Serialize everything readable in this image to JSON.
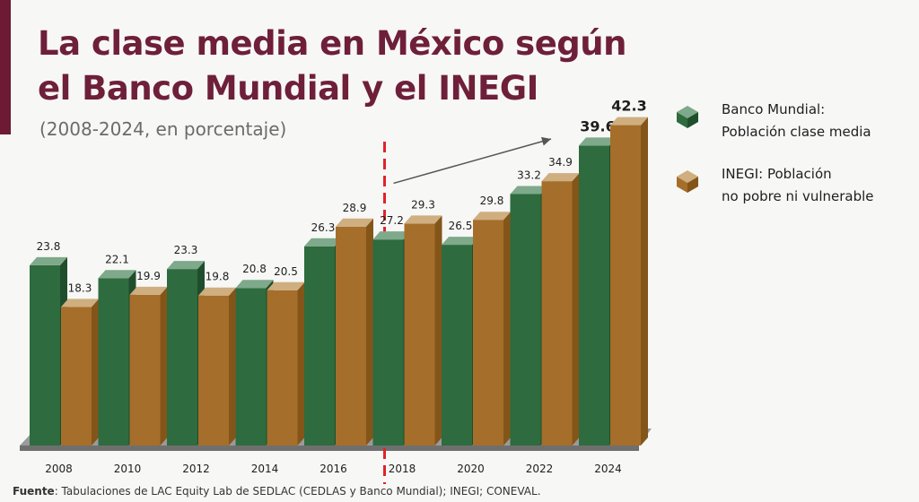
{
  "title_line1": "La clase media en México según",
  "title_line2": "el Banco Mundial y el INEGI",
  "subtitle": "(2008-2024, en porcentaje)",
  "source_label": "Fuente",
  "source_text": ": Tabulaciones de LAC Equity Lab de SEDLAC (CEDLAS y Banco Mundial); INEGI; CONEVAL.",
  "colors": {
    "banco_front": "#2e6b3e",
    "banco_side": "#1f4e2c",
    "banco_top": "#7ea98a",
    "inegi_front": "#a56e2a",
    "inegi_side": "#845519",
    "inegi_top": "#cfae7f",
    "divider": "#e0232a",
    "title": "#6e1f3a"
  },
  "chart_data": {
    "type": "bar",
    "title": "La clase media en México según el Banco Mundial y el INEGI",
    "subtitle": "(2008-2024, en porcentaje)",
    "categories": [
      "2008",
      "2010",
      "2012",
      "2014",
      "2016",
      "2018",
      "2020",
      "2022",
      "2024"
    ],
    "series": [
      {
        "name": "Banco Mundial: Población clase media",
        "legend_label": "Banco Mundial:\nPoblación clase media",
        "values": [
          23.8,
          22.1,
          23.3,
          20.8,
          26.3,
          27.2,
          26.5,
          33.2,
          39.6
        ],
        "labels": [
          "23.8",
          "22.1",
          "23.3",
          "20.8",
          "26.3",
          "27.2",
          "26.5",
          "33.2",
          "39.6"
        ]
      },
      {
        "name": "INEGI: Población no pobre ni vulnerable",
        "legend_label": "INEGI: Población\nno pobre ni vulnerable",
        "values": [
          18.3,
          19.9,
          19.8,
          20.5,
          28.9,
          29.3,
          29.8,
          34.9,
          42.3
        ],
        "labels": [
          "18.3",
          "19.9",
          "19.8",
          "20.5",
          "28.9",
          "29.3",
          "29.8",
          "34.9",
          "42.3"
        ]
      }
    ],
    "highlighted_category": "2024",
    "divider_between": [
      "2016",
      "2018"
    ],
    "trend_arrow": "up from 2018 toward 2024",
    "legend_position": "right",
    "xlabel": "",
    "ylabel": ""
  }
}
